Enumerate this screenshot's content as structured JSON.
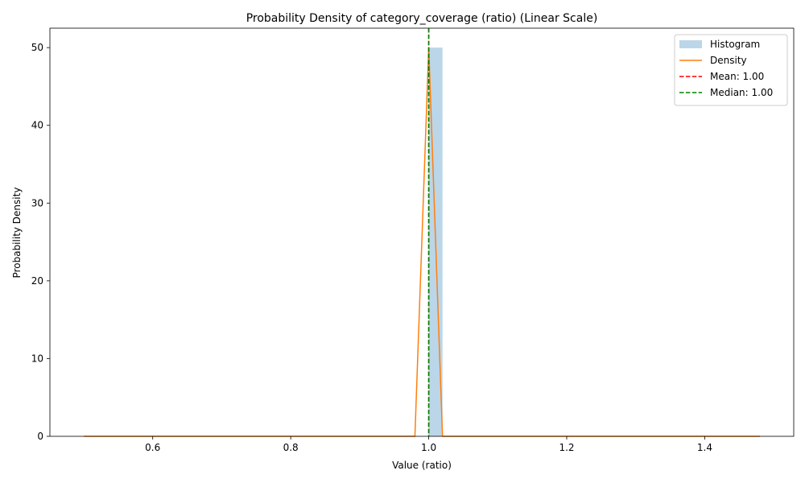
{
  "chart_data": {
    "type": "histogram",
    "title": "Probability Density of category_coverage (ratio) (Linear Scale)",
    "xlabel": "Value (ratio)",
    "ylabel": "Probability Density",
    "xlim": [
      0.451,
      1.529
    ],
    "ylim": [
      0,
      52.5
    ],
    "xticks": [
      0.6,
      0.8,
      1.0,
      1.2,
      1.4
    ],
    "xtick_labels": [
      "0.6",
      "0.8",
      "1.0",
      "1.2",
      "1.4"
    ],
    "yticks": [
      0,
      10,
      20,
      30,
      40,
      50
    ],
    "ytick_labels": [
      "0",
      "10",
      "20",
      "30",
      "40",
      "50"
    ],
    "grid": false,
    "legend_position": "top-right",
    "histogram": {
      "name": "Histogram",
      "color": "#1f77b4",
      "opacity": 0.3,
      "bins": [
        {
          "x0": 1.0,
          "x1": 1.02,
          "density": 50
        }
      ]
    },
    "density": {
      "name": "Density",
      "color": "#ff7f0e",
      "x": [
        0.5,
        0.98,
        1.0,
        1.02,
        1.48
      ],
      "y": [
        0,
        0,
        50,
        0,
        0
      ]
    },
    "vlines": [
      {
        "name": "Mean: 1.00",
        "x": 1.0,
        "color": "#ff0000",
        "style": "dashed"
      },
      {
        "name": "Median: 1.00",
        "x": 1.0,
        "color": "#008000",
        "style": "dashed"
      }
    ]
  }
}
